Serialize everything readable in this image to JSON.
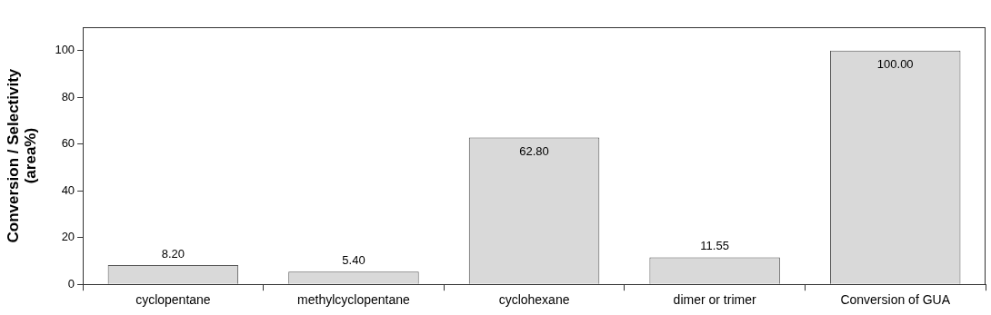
{
  "chart_data": {
    "type": "bar",
    "y_label": [
      "Conversion / Selectivity",
      "(area%)"
    ],
    "categories": [
      "cyclopentane",
      "methylcyclopentane",
      "cyclohexane",
      "dimer or trimer",
      "Conversion of GUA"
    ],
    "values": [
      8.2,
      5.4,
      62.8,
      11.55,
      100
    ],
    "value_labels": [
      "8.20",
      "5.40",
      "62.80",
      "11.55",
      "100.00"
    ],
    "color": "#d9d9d9",
    "ylim": [
      0,
      110
    ],
    "yticks": [
      0,
      20,
      40,
      60,
      80,
      100
    ],
    "grid": false,
    "data_labels": true
  }
}
